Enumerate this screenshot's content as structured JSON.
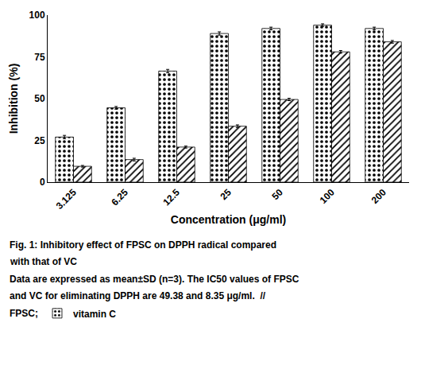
{
  "chart_data": {
    "type": "bar",
    "xlabel": "Concentration (μg/ml)",
    "ylabel": "Inhibition (%)",
    "categories": [
      "3.125",
      "6.25",
      "12.5",
      "25",
      "50",
      "100",
      "200"
    ],
    "series": [
      {
        "name": "vitamin C",
        "color": "white",
        "values": [
          27.0,
          44.5,
          66.5,
          89.0,
          92.0,
          94.0,
          92.0
        ],
        "errors": [
          1.0,
          0.8,
          1.0,
          1.0,
          0.8,
          0.8,
          0.8
        ]
      },
      {
        "color": "white",
        "values": [
          9.5,
          13.5,
          21.0,
          33.5,
          49.5,
          78.0,
          84.0
        ],
        "errors": [
          0.5,
          0.8,
          0.6,
          0.8,
          0.7,
          0.8,
          0.8
        ]
      }
    ],
    "ylim": [
      0,
      100
    ],
    "yticks": [
      0,
      25,
      50,
      75,
      100
    ],
    "grid": false,
    "legend": "bottom left",
    "annotations": [
      "Fig. 1: Inhibitory effect of FPSC on DPPH radical compared",
      "with that of VC",
      "Data are expressed as mean±SD (n=3). The IC50 values of FPSC",
      "and VC for eliminating DPPH are 49.38 and 8.35 μg/ml.  //",
      "FPSC;"
    ]
  }
}
